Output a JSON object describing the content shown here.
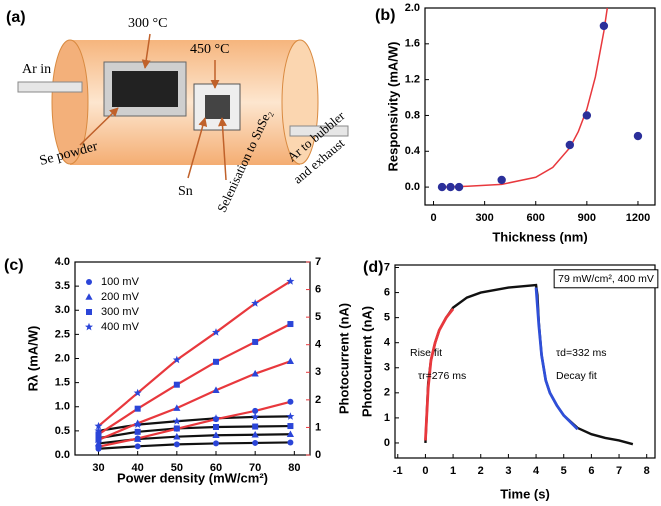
{
  "diagram": {
    "panel_label": "(a)",
    "labels": {
      "ar_in": "Ar in",
      "temp_1": "300 °C",
      "temp_2": "450 °C",
      "se_powder": "Se powder",
      "sn": "Sn",
      "selenisation": "Selenisation to SnSe₂",
      "exhaust": [
        "Ar to bubbler",
        "and exhaust"
      ]
    }
  },
  "chart_data": [
    {
      "type": "scatter",
      "panel_label": "(b)",
      "x_label": "Thickness (nm)",
      "y_label": "Responsivity (mA/W)",
      "x": [
        50,
        100,
        150,
        400,
        800,
        900,
        1000,
        1200
      ],
      "values": [
        0,
        0,
        0,
        0.08,
        0.47,
        0.8,
        1.8,
        0.57
      ],
      "color": "#2b2f9a",
      "fit": {
        "x": [
          50,
          200,
          400,
          600,
          700,
          800,
          850,
          900,
          950,
          1000,
          1020
        ],
        "values": [
          0.0,
          0.01,
          0.03,
          0.11,
          0.22,
          0.44,
          0.62,
          0.87,
          1.23,
          1.74,
          2.0
        ],
        "color": "#e8383d"
      },
      "xlim": [
        -50,
        1300
      ],
      "ylim": [
        -0.2,
        2.0
      ],
      "xticks": [
        0,
        300,
        600,
        900,
        1200
      ],
      "yticks": [
        {
          "value": 0,
          "label": "0.0"
        },
        0.4,
        0.8,
        1.2,
        1.6,
        {
          "value": 2,
          "label": "2.0"
        }
      ]
    },
    {
      "type": "line",
      "panel_label": "(c)",
      "x_label": "Power density (mW/cm²)",
      "y_label": "Rλ (mA/W)",
      "y2_label": "Photocurrent (nA)",
      "x": [
        30,
        40,
        50,
        60,
        70,
        79
      ],
      "xlim": [
        24,
        84
      ],
      "xticks": [
        30,
        40,
        50,
        60,
        70,
        80
      ],
      "ylim": [
        0,
        4
      ],
      "yticks": [
        {
          "value": 0,
          "label": "0.0"
        },
        0.5,
        {
          "value": 1,
          "label": "1.0"
        },
        1.5,
        {
          "value": 2,
          "label": "2.0"
        },
        2.5,
        {
          "value": 3,
          "label": "3.0"
        },
        3.5,
        {
          "value": 4,
          "label": "4.0"
        }
      ],
      "y2lim": [
        0,
        7
      ],
      "y2ticks": [
        0,
        1,
        2,
        3,
        4,
        5,
        6,
        7
      ],
      "marker_color": "#2b45d8",
      "line_color": "#111111",
      "y2_color": "#e8383d",
      "series": [
        {
          "name": "100 mV",
          "marker": "circle",
          "values": [
            0.13,
            0.18,
            0.22,
            0.24,
            0.25,
            0.26
          ]
        },
        {
          "name": "200 mV",
          "marker": "triangle",
          "values": [
            0.24,
            0.33,
            0.38,
            0.41,
            0.42,
            0.43
          ]
        },
        {
          "name": "300 mV",
          "marker": "square",
          "values": [
            0.35,
            0.48,
            0.55,
            0.58,
            0.59,
            0.6
          ]
        },
        {
          "name": "400 mV",
          "marker": "star",
          "values": [
            0.5,
            0.63,
            0.7,
            0.76,
            0.79,
            0.8
          ]
        }
      ],
      "y2_series": [
        {
          "marker": "circle",
          "axis": "y2",
          "values": [
            0.3,
            0.6,
            0.95,
            1.3,
            1.6,
            1.93
          ]
        },
        {
          "marker": "triangle",
          "axis": "y2",
          "values": [
            0.55,
            1.15,
            1.7,
            2.35,
            2.95,
            3.4
          ]
        },
        {
          "marker": "square",
          "axis": "y2",
          "values": [
            0.75,
            1.68,
            2.55,
            3.38,
            4.1,
            4.75
          ]
        },
        {
          "marker": "star",
          "axis": "y2",
          "values": [
            1.05,
            2.25,
            3.45,
            4.45,
            5.5,
            6.3
          ]
        }
      ]
    },
    {
      "type": "line",
      "panel_label": "(d)",
      "x_label": "Time (s)",
      "y_label": "Photocurrent (nA)",
      "xlim": [
        -1.1,
        8.3
      ],
      "xticks": [
        -1,
        0,
        1,
        2,
        3,
        4,
        5,
        6,
        7,
        8
      ],
      "ylim": [
        -0.6,
        7.1
      ],
      "yticks": [
        0,
        1,
        2,
        3,
        4,
        5,
        6,
        7
      ],
      "series": [
        {
          "color": "#111111",
          "x": [
            0,
            0.05,
            0.1,
            0.2,
            0.35,
            0.5,
            0.75,
            1,
            1.5,
            2,
            2.5,
            3,
            3.5,
            4,
            4.05,
            4.1,
            4.2,
            4.35,
            4.5,
            4.75,
            5,
            5.5,
            6,
            6.5,
            7,
            7.5
          ],
          "values": [
            0,
            1.2,
            2.4,
            3.3,
            4.0,
            4.5,
            5.0,
            5.4,
            5.8,
            6.0,
            6.1,
            6.2,
            6.25,
            6.3,
            5.9,
            4.8,
            3.5,
            2.5,
            2.0,
            1.5,
            1.1,
            0.6,
            0.35,
            0.2,
            0.1,
            -0.05
          ]
        },
        {
          "color": "#e8383d",
          "x": [
            0,
            0.1,
            0.2,
            0.35,
            0.5,
            0.75,
            1.0
          ],
          "values": [
            0.1,
            2.2,
            3.3,
            4.0,
            4.5,
            5.0,
            5.35
          ]
        },
        {
          "color": "#2f4fd8",
          "x": [
            4,
            4.1,
            4.2,
            4.35,
            4.5,
            4.75,
            5,
            5.5
          ],
          "values": [
            6.2,
            4.7,
            3.5,
            2.5,
            2.0,
            1.5,
            1.1,
            0.55
          ]
        }
      ],
      "annotations": [
        "79 mW/cm², 400 mV",
        "Rise fit",
        "τr=276 ms",
        "τd=332 ms",
        "Decay fit"
      ]
    }
  ]
}
